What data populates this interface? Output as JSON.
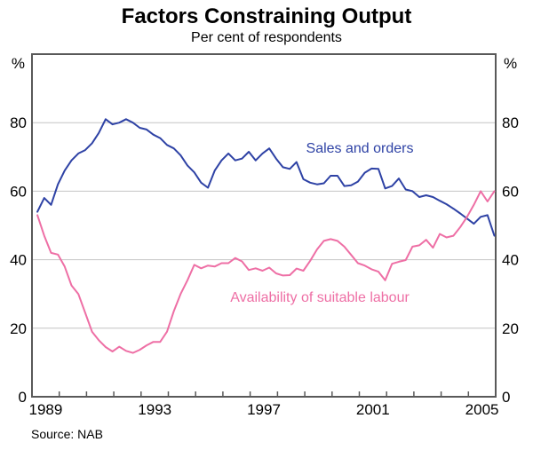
{
  "chart_data": {
    "type": "line",
    "title": "Factors Constraining Output",
    "subtitle": "Per cent of respondents",
    "source": "Source: NAB",
    "unit_label": "%",
    "ylim": [
      0,
      100
    ],
    "yticks": [
      0,
      20,
      40,
      60,
      80
    ],
    "gridlines": [
      20,
      40,
      60,
      80
    ],
    "xlim": [
      1989,
      2006
    ],
    "x_labels": [
      1989,
      1993,
      1997,
      2001,
      2005
    ],
    "x_start": 1989.2,
    "x_step": 0.25,
    "frequency": "quarterly",
    "grid": "on",
    "legend_position": "inline-labels",
    "colors": {
      "frame": "#595959",
      "grid": "#c4c4c4",
      "text": "#000000",
      "background": "#ffffff"
    },
    "series": [
      {
        "name": "Sales and orders",
        "color": "#2e42a5",
        "values": [
          54,
          58,
          56,
          62,
          66,
          69,
          71,
          72,
          74,
          77,
          81,
          79.5,
          80,
          81,
          80,
          78.5,
          78,
          76.5,
          75.5,
          73.5,
          72.5,
          70.5,
          67.5,
          65.5,
          62.5,
          61,
          66,
          69,
          71,
          69,
          69.5,
          71.5,
          69,
          71,
          72.5,
          69.5,
          67,
          66.5,
          68.5,
          63.5,
          62.5,
          62,
          62.3,
          64.5,
          64.5,
          61.5,
          61.7,
          62.8,
          65.4,
          66.6,
          66.5,
          60.8,
          61.5,
          63.7,
          60.5,
          60,
          58.3,
          58.8,
          58.3,
          57.2,
          56.2,
          54.9,
          53.5,
          52,
          50.5,
          52.5,
          53,
          47
        ]
      },
      {
        "name": "Availability of suitable labour",
        "color": "#ee6fa5",
        "values": [
          53,
          47,
          42,
          41.5,
          38,
          32.5,
          30,
          24.5,
          19,
          16.5,
          14.5,
          13.2,
          14.6,
          13.4,
          12.8,
          13.7,
          15,
          16,
          16,
          19,
          25,
          30,
          34,
          38.5,
          37.5,
          38.3,
          38,
          39,
          39,
          40.5,
          39.5,
          37,
          37.5,
          36.8,
          37.7,
          36,
          35.4,
          35.5,
          37.4,
          36.8,
          39.7,
          43,
          45.5,
          46,
          45.5,
          43.8,
          41.4,
          39,
          38.3,
          37.2,
          36.5,
          34,
          38.8,
          39.4,
          39.9,
          43.8,
          44.2,
          45.8,
          43.5,
          47.5,
          46.5,
          47,
          49.5,
          52.5,
          56,
          60,
          57,
          60
        ]
      }
    ]
  }
}
